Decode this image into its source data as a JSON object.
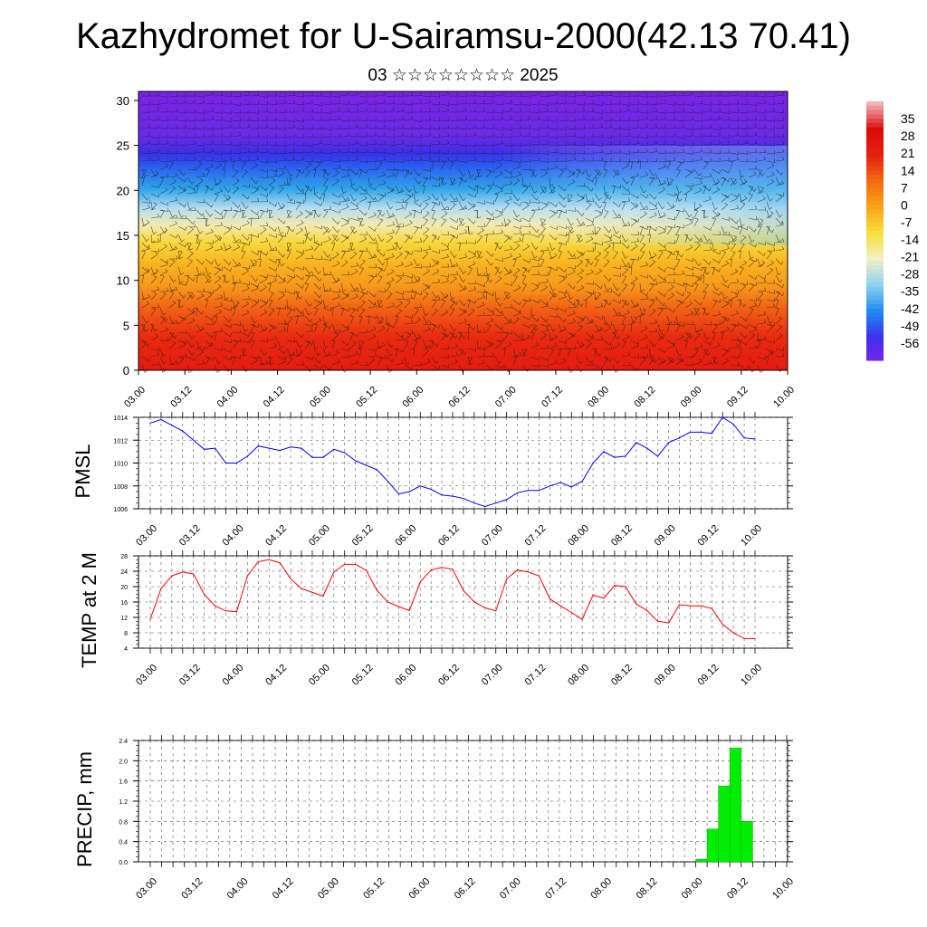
{
  "title": "Kazhydromet for U-Sairamsu-2000(42.13 70.41)",
  "subtitle": "03 ☆☆☆☆☆☆☆☆ 2025",
  "chart_data": [
    {
      "type": "heatmap",
      "description_of_fill": "cross-section of temperature with wind barbs",
      "x_tick_labels": [
        "03.00",
        "03.12",
        "04.00",
        "04.12",
        "05.00",
        "05.12",
        "06.00",
        "06.12",
        "07.00",
        "07.12",
        "08.00",
        "08.12",
        "09.00",
        "09.12",
        "10.00"
      ],
      "y_ticks": [
        0,
        5,
        10,
        15,
        20,
        25,
        30
      ],
      "ylim": [
        0,
        31
      ],
      "colorbar_labels": [
        35,
        28,
        21,
        14,
        7,
        0,
        -7,
        -14,
        -21,
        -28,
        -35,
        -42,
        -49,
        -56
      ],
      "colorbar_range": [
        -63,
        42
      ],
      "palette": [
        "#7a22e6",
        "#3c32f0",
        "#1f8ef2",
        "#8fd2f0",
        "#f3f0c6",
        "#f6e03c",
        "#f9a418",
        "#f46a12",
        "#e52010",
        "#dc0b0a",
        "#f2b2b8"
      ]
    },
    {
      "type": "line",
      "ylabel": "PMSL",
      "ylim": [
        1006,
        1014
      ],
      "y_ticks": [
        1006,
        1008,
        1010,
        1012,
        1014
      ],
      "x_tick_labels": [
        "03.00",
        "03.12",
        "04.00",
        "04.12",
        "05.00",
        "05.12",
        "06.00",
        "06.12",
        "07.00",
        "07.12",
        "08.00",
        "08.12",
        "09.00",
        "09.12",
        "10.00"
      ],
      "x_start": "03.00",
      "step_hours": 3,
      "color": "#0000ff",
      "values": [
        1013.5,
        1013.8,
        1013.3,
        1012.8,
        1012.0,
        1011.2,
        1011.3,
        1010.0,
        1010.0,
        1010.6,
        1011.5,
        1011.3,
        1011.1,
        1011.4,
        1011.3,
        1010.5,
        1010.5,
        1011.2,
        1010.9,
        1010.2,
        1009.8,
        1009.4,
        1008.4,
        1007.3,
        1007.5,
        1008.0,
        1007.7,
        1007.2,
        1007.1,
        1006.9,
        1006.5,
        1006.2,
        1006.5,
        1006.8,
        1007.4,
        1007.6,
        1007.6,
        1008.0,
        1008.3,
        1007.9,
        1008.4,
        1010.0,
        1011.0,
        1010.5,
        1010.6,
        1011.8,
        1011.3,
        1010.6,
        1011.8,
        1012.2,
        1012.7,
        1012.7,
        1012.6,
        1014.0,
        1013.4,
        1012.2,
        1012.1
      ]
    },
    {
      "type": "line",
      "ylabel": "TEMP at 2 M",
      "ylim": [
        4,
        28
      ],
      "y_ticks": [
        4,
        8,
        12,
        16,
        20,
        24,
        28
      ],
      "x_tick_labels": [
        "03.00",
        "03.12",
        "04.00",
        "04.12",
        "05.00",
        "05.12",
        "06.00",
        "06.12",
        "07.00",
        "07.12",
        "08.00",
        "08.12",
        "09.00",
        "09.12",
        "10.00"
      ],
      "x_start": "03.00",
      "step_hours": 3,
      "color": "#ff0000",
      "values": [
        11.5,
        19.5,
        22.8,
        23.8,
        23.3,
        18.0,
        15.0,
        13.7,
        13.5,
        22.8,
        26.5,
        27.0,
        26.2,
        22.0,
        19.5,
        18.5,
        17.5,
        23.8,
        25.8,
        25.8,
        24.2,
        19.0,
        16.0,
        14.8,
        13.8,
        21.2,
        24.3,
        25.0,
        24.5,
        19.0,
        16.0,
        14.5,
        13.7,
        22.0,
        24.3,
        23.8,
        22.8,
        16.8,
        15.0,
        13.3,
        11.5,
        17.8,
        17.0,
        20.3,
        20.0,
        15.5,
        13.8,
        11.0,
        10.6,
        15.3,
        15.0,
        15.0,
        14.3,
        10.2,
        8.0,
        6.5,
        6.5
      ]
    },
    {
      "type": "bar",
      "ylabel": "PRECIP, mm",
      "ylim": [
        0,
        2.4
      ],
      "y_ticks": [
        "0.0",
        "0.4",
        "0.8",
        "1.2",
        "1.6",
        "2.0",
        "2.4"
      ],
      "x_tick_labels": [
        "03.00",
        "03.12",
        "04.00",
        "04.12",
        "05.00",
        "05.12",
        "06.00",
        "06.12",
        "07.00",
        "07.12",
        "08.00",
        "08.12",
        "09.00",
        "09.12",
        "10.00"
      ],
      "x_start": "03.00",
      "step_hours": 3,
      "color": "#00ee00",
      "values": [
        0,
        0,
        0,
        0,
        0,
        0,
        0,
        0,
        0,
        0,
        0,
        0,
        0,
        0,
        0,
        0,
        0,
        0,
        0,
        0,
        0,
        0,
        0,
        0,
        0,
        0,
        0,
        0,
        0,
        0,
        0,
        0,
        0,
        0,
        0,
        0,
        0,
        0,
        0,
        0,
        0,
        0,
        0,
        0,
        0,
        0,
        0,
        0,
        0.05,
        0.65,
        1.5,
        2.25,
        0.8,
        0,
        0,
        0,
        0
      ]
    }
  ]
}
